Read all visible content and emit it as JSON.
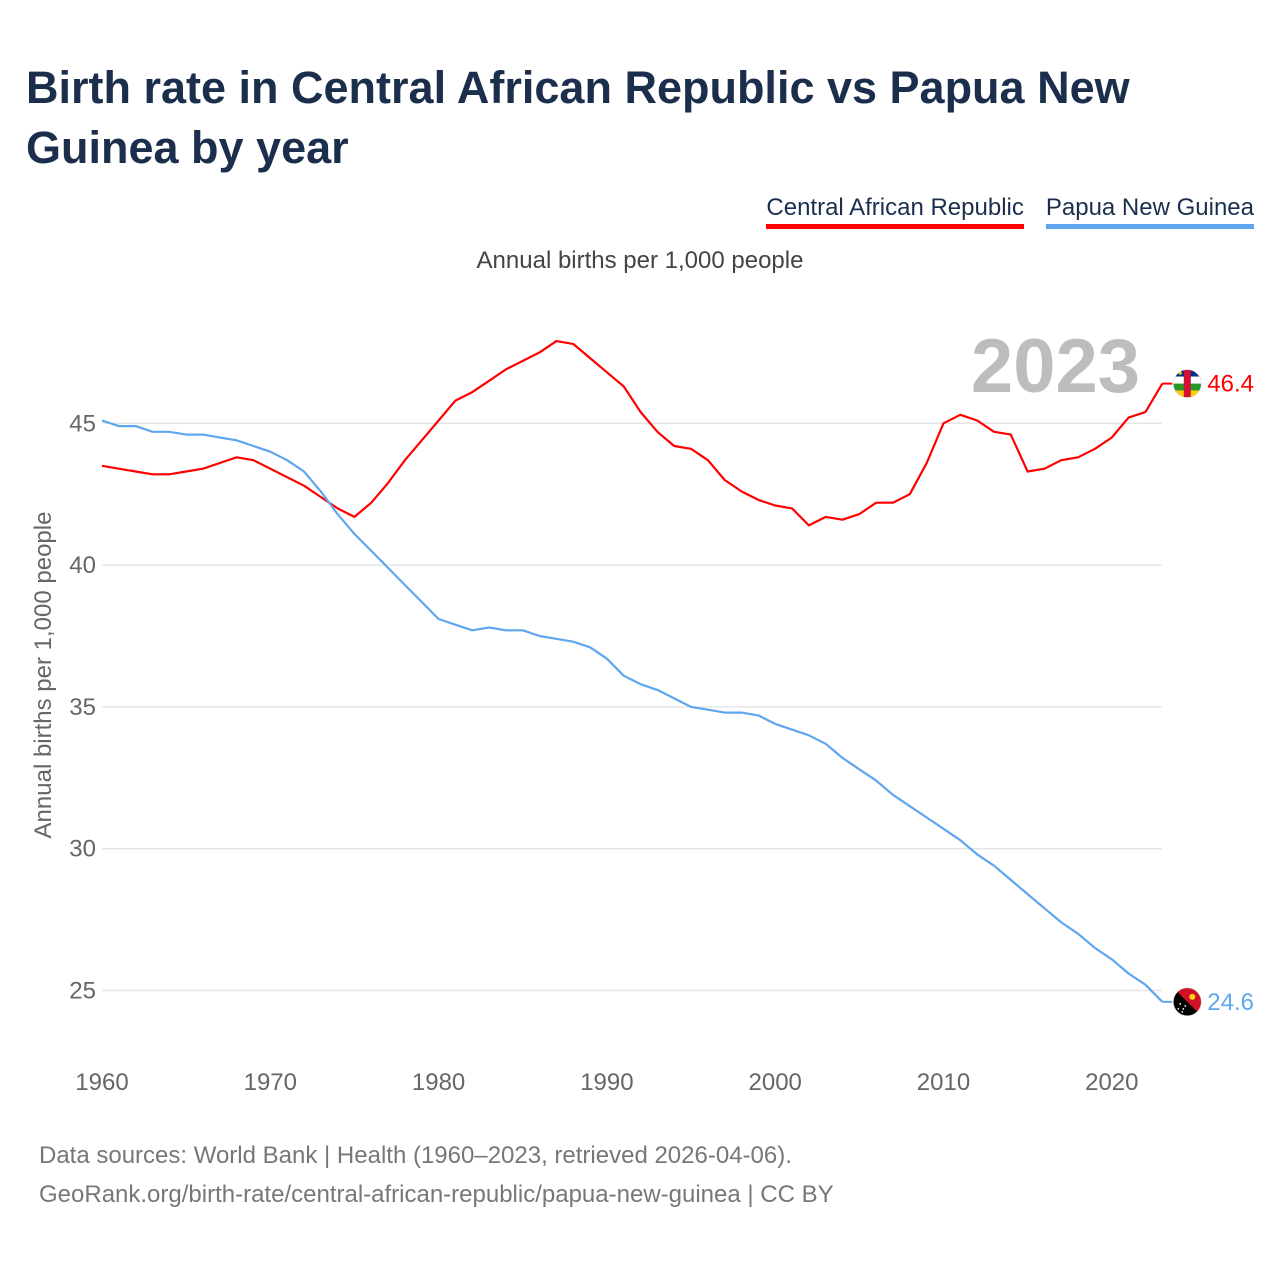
{
  "title": "Birth rate in Central African Republic vs Papua New Guinea by year",
  "subtitle": "Annual births per 1,000 people",
  "footer": {
    "line1": "Data sources: World Bank | Health (1960–2023, retrieved 2026-04-06).",
    "line2": "GeoRank.org/birth-rate/central-african-republic/papua-new-guinea | CC BY"
  },
  "chart_data": {
    "type": "line",
    "title": "Birth rate in Central African Republic vs Papua New Guinea by year",
    "xlabel": "",
    "ylabel": "Annual births per 1,000 people",
    "current_year_label": "2023",
    "xlim": [
      1960,
      2023
    ],
    "ylim": [
      23.5,
      49
    ],
    "x_ticks": [
      1960,
      1970,
      1980,
      1990,
      2000,
      2010,
      2020
    ],
    "y_ticks": [
      25,
      30,
      35,
      40,
      45
    ],
    "grid": true,
    "legend_position": "top-right",
    "x": [
      1960,
      1961,
      1962,
      1963,
      1964,
      1965,
      1966,
      1967,
      1968,
      1969,
      1970,
      1971,
      1972,
      1973,
      1974,
      1975,
      1976,
      1977,
      1978,
      1979,
      1980,
      1981,
      1982,
      1983,
      1984,
      1985,
      1986,
      1987,
      1988,
      1989,
      1990,
      1991,
      1992,
      1993,
      1994,
      1995,
      1996,
      1997,
      1998,
      1999,
      2000,
      2001,
      2002,
      2003,
      2004,
      2005,
      2006,
      2007,
      2008,
      2009,
      2010,
      2011,
      2012,
      2013,
      2014,
      2015,
      2016,
      2017,
      2018,
      2019,
      2020,
      2021,
      2022,
      2023
    ],
    "series": [
      {
        "name": "Central African Republic",
        "color": "#ff0000",
        "end_label": "46.4",
        "values": [
          43.5,
          43.4,
          43.3,
          43.2,
          43.2,
          43.3,
          43.4,
          43.6,
          43.8,
          43.7,
          43.4,
          43.1,
          42.8,
          42.4,
          42.0,
          41.7,
          42.2,
          42.9,
          43.7,
          44.4,
          45.1,
          45.8,
          46.1,
          46.5,
          46.9,
          47.2,
          47.5,
          47.9,
          47.8,
          47.3,
          46.8,
          46.3,
          45.4,
          44.7,
          44.2,
          44.1,
          43.7,
          43.0,
          42.6,
          42.3,
          42.1,
          42.0,
          41.4,
          41.7,
          41.6,
          41.8,
          42.2,
          42.2,
          42.5,
          43.6,
          45.0,
          45.3,
          45.1,
          44.7,
          44.6,
          43.3,
          43.4,
          43.7,
          43.8,
          44.1,
          44.5,
          45.2,
          45.4,
          46.4
        ]
      },
      {
        "name": "Papua New Guinea",
        "color": "#5ea7ee",
        "end_label": "24.6",
        "values": [
          45.1,
          44.9,
          44.9,
          44.7,
          44.7,
          44.6,
          44.6,
          44.5,
          44.4,
          44.2,
          44.0,
          43.7,
          43.3,
          42.6,
          41.8,
          41.1,
          40.5,
          39.9,
          39.3,
          38.7,
          38.1,
          37.9,
          37.7,
          37.8,
          37.7,
          37.7,
          37.5,
          37.4,
          37.3,
          37.1,
          36.7,
          36.1,
          35.8,
          35.6,
          35.3,
          35.0,
          34.9,
          34.8,
          34.8,
          34.7,
          34.4,
          34.2,
          34.0,
          33.7,
          33.2,
          32.8,
          32.4,
          31.9,
          31.5,
          31.1,
          30.7,
          30.3,
          29.8,
          29.4,
          28.9,
          28.4,
          27.9,
          27.4,
          27.0,
          26.5,
          26.1,
          25.6,
          25.2,
          24.6
        ]
      }
    ]
  }
}
